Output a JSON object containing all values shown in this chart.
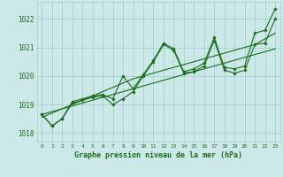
{
  "title": "Graphe pression niveau de la mer (hPa)",
  "background_color": "#cce8e8",
  "grid_color": "#a8d0d0",
  "line_color": "#1a6e1a",
  "xlim": [
    -0.5,
    23.5
  ],
  "ylim": [
    1017.7,
    1022.6
  ],
  "yticks": [
    1018,
    1019,
    1020,
    1021,
    1022
  ],
  "xticks": [
    0,
    1,
    2,
    3,
    4,
    5,
    6,
    7,
    8,
    9,
    10,
    11,
    12,
    13,
    14,
    15,
    16,
    17,
    18,
    19,
    20,
    21,
    22,
    23
  ],
  "series_with_markers": [
    [
      1018.65,
      1018.25,
      1018.5,
      1019.1,
      1019.2,
      1019.3,
      1019.35,
      1019.2,
      1020.0,
      1019.55,
      1020.05,
      1020.55,
      1021.15,
      1020.95,
      1020.15,
      1020.25,
      1020.45,
      1021.35,
      1020.3,
      1020.25,
      1020.35,
      1021.5,
      1021.6,
      1022.35
    ],
    [
      1018.65,
      1018.25,
      1018.5,
      1019.05,
      1019.15,
      1019.25,
      1019.3,
      1019.0,
      1019.2,
      1019.45,
      1020.0,
      1020.5,
      1021.1,
      1020.9,
      1020.1,
      1020.15,
      1020.35,
      1021.25,
      1020.2,
      1020.1,
      1020.2,
      1021.1,
      1021.15,
      1022.0
    ]
  ],
  "series_linear": [
    [
      1018.65,
      1018.75,
      1018.85,
      1018.95,
      1019.05,
      1019.15,
      1019.25,
      1019.35,
      1019.45,
      1019.55,
      1019.65,
      1019.75,
      1019.85,
      1019.95,
      1020.05,
      1020.15,
      1020.25,
      1020.35,
      1020.45,
      1020.55,
      1020.65,
      1020.75,
      1020.85,
      1020.95
    ],
    [
      1018.55,
      1018.7,
      1018.85,
      1019.0,
      1019.15,
      1019.3,
      1019.45,
      1019.6,
      1019.75,
      1019.9,
      1020.0,
      1020.1,
      1020.2,
      1020.3,
      1020.4,
      1020.5,
      1020.6,
      1020.7,
      1020.8,
      1020.9,
      1021.0,
      1021.1,
      1021.3,
      1021.5
    ]
  ]
}
